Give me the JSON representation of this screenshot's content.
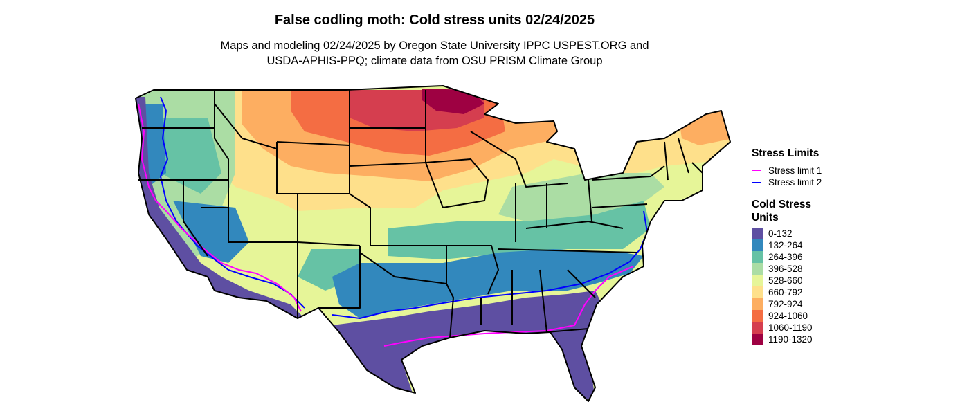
{
  "title": "False codling moth: Cold stress units 02/24/2025",
  "subtitle": [
    "Maps and modeling 02/24/2025 by Oregon State University IPPC USPEST.ORG and",
    "USDA-APHIS-PPQ; climate data from OSU PRISM Climate Group"
  ],
  "legend": {
    "stress_title": "Stress Limits",
    "stress_limits": [
      {
        "label": "Stress limit 1",
        "color": "#ff00ff"
      },
      {
        "label": "Stress limit 2",
        "color": "#0000ff"
      }
    ],
    "csu_title": "Cold Stress Units",
    "bins": [
      {
        "label": "0-132",
        "color": "#5e4fa2"
      },
      {
        "label": "132-264",
        "color": "#3288bd"
      },
      {
        "label": "264-396",
        "color": "#66c2a5"
      },
      {
        "label": "396-528",
        "color": "#abdda4"
      },
      {
        "label": "528-660",
        "color": "#e6f598"
      },
      {
        "label": "660-792",
        "color": "#fee08b"
      },
      {
        "label": "792-924",
        "color": "#fdae61"
      },
      {
        "label": "924-1060",
        "color": "#f46d43"
      },
      {
        "label": "1060-1190",
        "color": "#d53e4f"
      },
      {
        "label": "1190-1320",
        "color": "#9e0142"
      }
    ]
  }
}
